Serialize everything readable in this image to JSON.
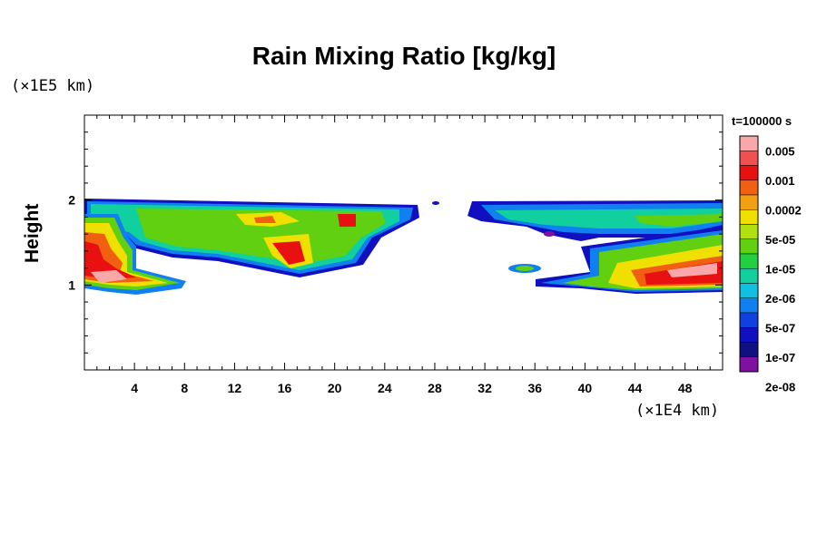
{
  "chart_data": {
    "type": "heatmap",
    "title": "Rain Mixing Ratio [kg/kg]",
    "ylabel": "Height",
    "yunit": "(×1E5 km)",
    "xunit": "(×1E4 km)",
    "time_label": "t=100000 s",
    "xlim": [
      0,
      51
    ],
    "ylim": [
      0,
      3
    ],
    "x_ticks": [
      "4",
      "8",
      "12",
      "16",
      "20",
      "24",
      "28",
      "32",
      "36",
      "40",
      "44",
      "48"
    ],
    "x_tick_values": [
      4,
      8,
      12,
      16,
      20,
      24,
      28,
      32,
      36,
      40,
      44,
      48
    ],
    "y_ticks": [
      "1",
      "2"
    ],
    "y_tick_values": [
      1,
      2
    ],
    "colorbar": {
      "labels": [
        "0.005",
        "0.001",
        "0.0002",
        "5e-05",
        "1e-05",
        "2e-06",
        "5e-07",
        "1e-07",
        "2e-08"
      ],
      "colors_top_to_bottom": [
        "#f8a8a8",
        "#f05050",
        "#e81010",
        "#f06010",
        "#f0a010",
        "#f0e000",
        "#b0e010",
        "#60d010",
        "#20d040",
        "#10d0a0",
        "#10c0e0",
        "#1080f0",
        "#1040e0",
        "#1010c0",
        "#101080",
        "#8010a0"
      ]
    },
    "regions": [
      {
        "name": "upper-band-left",
        "x": [
          0,
          27
        ],
        "y": [
          1.5,
          2.0
        ],
        "level": "mixed"
      },
      {
        "name": "upper-band-right",
        "x": [
          31,
          51
        ],
        "y": [
          1.4,
          2.0
        ],
        "level": "mixed"
      },
      {
        "name": "lower-left-cell",
        "x": [
          0,
          8
        ],
        "y": [
          0.9,
          1.8
        ],
        "level": "high"
      },
      {
        "name": "lower-right-cell",
        "x": [
          36,
          51
        ],
        "y": [
          0.95,
          1.5
        ],
        "level": "high"
      }
    ]
  }
}
